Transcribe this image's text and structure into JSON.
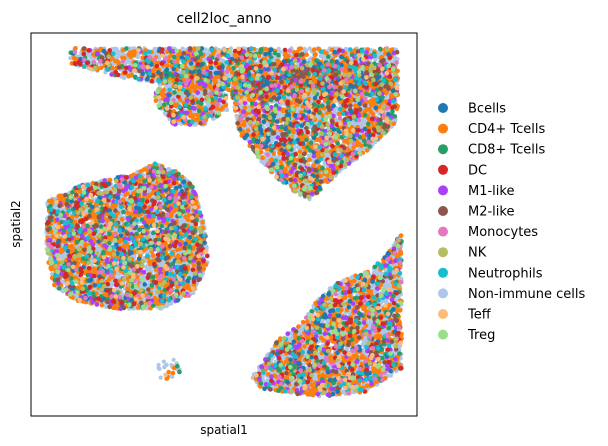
{
  "chart_data": {
    "type": "scatter",
    "title": "cell2loc_anno",
    "xlabel": "spatial1",
    "ylabel": "spatial2",
    "xlim": [
      0,
      100
    ],
    "ylim": [
      0,
      100
    ],
    "ticks_visible": false,
    "grid": false,
    "legend_position": "right",
    "series": [
      {
        "name": "Bcells",
        "color": "#1f77b4",
        "weight": 2
      },
      {
        "name": "CD4+ Tcells",
        "color": "#ff7f0e",
        "weight": 18
      },
      {
        "name": "CD8+ Tcells",
        "color": "#279e68",
        "weight": 4
      },
      {
        "name": "DC",
        "color": "#d62728",
        "weight": 2
      },
      {
        "name": "M1-like",
        "color": "#aa40fc",
        "weight": 3
      },
      {
        "name": "M2-like",
        "color": "#8c564b",
        "weight": 3
      },
      {
        "name": "Monocytes",
        "color": "#e377c2",
        "weight": 1
      },
      {
        "name": "NK",
        "color": "#b5bd61",
        "weight": 1
      },
      {
        "name": "Neutrophils",
        "color": "#17becf",
        "weight": 2
      },
      {
        "name": "Non-immune cells",
        "color": "#aec7e8",
        "weight": 62
      },
      {
        "name": "Teff",
        "color": "#ffbb78",
        "weight": 1
      },
      {
        "name": "Treg",
        "color": "#98df8a",
        "weight": 1
      }
    ],
    "regions": [
      {
        "label": "top band",
        "polygon": [
          [
            10,
            96
          ],
          [
            95,
            96
          ],
          [
            95,
            84
          ],
          [
            60,
            84
          ],
          [
            42,
            86
          ],
          [
            25,
            88
          ],
          [
            10,
            92
          ]
        ],
        "density": 3.2
      },
      {
        "label": "top-left blob",
        "polygon": [
          [
            33,
            90
          ],
          [
            50,
            90
          ],
          [
            51,
            80
          ],
          [
            45,
            76
          ],
          [
            37,
            76
          ],
          [
            32,
            82
          ]
        ],
        "density": 3.6
      },
      {
        "label": "top-right tissue",
        "polygon": [
          [
            53,
            92
          ],
          [
            95,
            92
          ],
          [
            95,
            77
          ],
          [
            88,
            70
          ],
          [
            78,
            62
          ],
          [
            72,
            56
          ],
          [
            66,
            60
          ],
          [
            60,
            66
          ],
          [
            54,
            74
          ],
          [
            52,
            84
          ]
        ],
        "density": 3.8
      },
      {
        "label": "left tissue",
        "polygon": [
          [
            4,
            56
          ],
          [
            12,
            60
          ],
          [
            20,
            62
          ],
          [
            26,
            63
          ],
          [
            32,
            66
          ],
          [
            38,
            64
          ],
          [
            42,
            60
          ],
          [
            45,
            50
          ],
          [
            46,
            40
          ],
          [
            42,
            32
          ],
          [
            34,
            28
          ],
          [
            22,
            28
          ],
          [
            12,
            30
          ],
          [
            6,
            34
          ],
          [
            4,
            42
          ]
        ],
        "density": 4.2
      },
      {
        "label": "bottom-right tissue",
        "polygon": [
          [
            57,
            10
          ],
          [
            60,
            14
          ],
          [
            64,
            20
          ],
          [
            70,
            24
          ],
          [
            74,
            30
          ],
          [
            78,
            34
          ],
          [
            82,
            36
          ],
          [
            88,
            38
          ],
          [
            92,
            42
          ],
          [
            96,
            48
          ],
          [
            96,
            12
          ],
          [
            86,
            6
          ],
          [
            74,
            5
          ],
          [
            60,
            7
          ]
        ],
        "density": 4.0
      },
      {
        "label": "small bottom-left cluster",
        "polygon": [
          [
            33,
            14
          ],
          [
            37,
            15
          ],
          [
            39,
            12
          ],
          [
            36,
            9
          ],
          [
            33,
            10
          ]
        ],
        "density": 1.2
      }
    ]
  }
}
